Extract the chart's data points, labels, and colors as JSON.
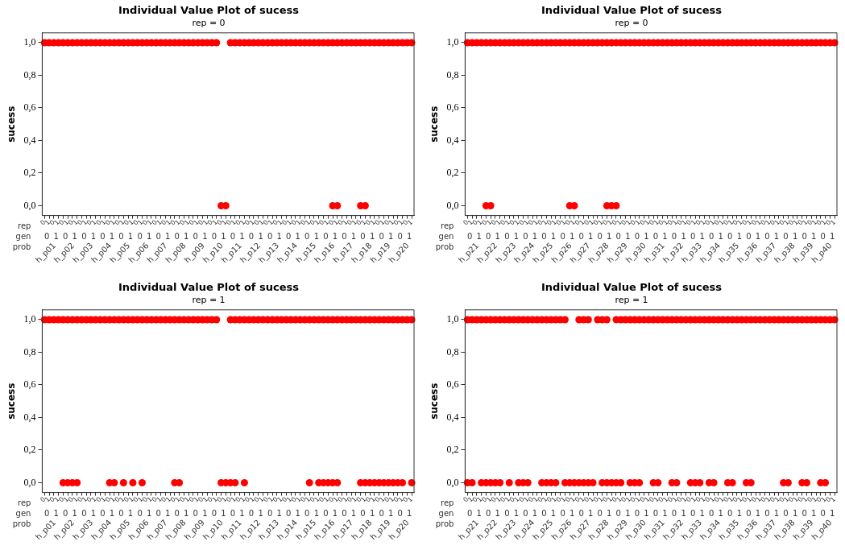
{
  "chart_data": [
    {
      "type": "scatter",
      "title": "Individual Value Plot of sucess",
      "subtitle": "rep = 0",
      "ylabel": "sucess",
      "marker": "circle",
      "grid": false,
      "legend": false,
      "categories": [
        "0",
        "1",
        "0",
        "1",
        "0",
        "1",
        "0",
        "1",
        "0",
        "1",
        "0",
        "1",
        "0",
        "1",
        "0",
        "1",
        "0",
        "1",
        "0",
        "1",
        "0",
        "1",
        "0",
        "1",
        "0",
        "1",
        "0",
        "1",
        "0",
        "1",
        "0",
        "1",
        "0",
        "1",
        "0",
        "1",
        "0",
        "1",
        "0",
        "1",
        "0",
        "1",
        "0",
        "1",
        "0",
        "1",
        "0",
        "1",
        "0",
        "1",
        "0",
        "1",
        "0",
        "1",
        "0",
        "1",
        "0",
        "1",
        "0",
        "1",
        "0",
        "1",
        "0",
        "1",
        "0",
        "1",
        "0",
        "1",
        "0",
        "1",
        "0",
        "1",
        "0",
        "1",
        "0",
        "1",
        "0",
        "1",
        "0",
        "1"
      ],
      "ylim": [
        -0.06,
        1.06
      ],
      "yticks": [
        {
          "value": 0,
          "label": "0,0"
        },
        {
          "value": 0.2,
          "label": "0,2"
        },
        {
          "value": 0.4,
          "label": "0,4"
        },
        {
          "value": 0.6,
          "label": "0,6"
        },
        {
          "value": 0.8,
          "label": "0,8"
        },
        {
          "value": 1,
          "label": "1,0"
        }
      ],
      "series": [
        {
          "type": "scatter",
          "color": "#ff0000",
          "values": [
            1,
            1,
            1,
            1,
            1,
            1,
            1,
            1,
            1,
            1,
            1,
            1,
            1,
            1,
            1,
            1,
            1,
            1,
            1,
            1,
            1,
            1,
            1,
            1,
            1,
            1,
            1,
            1,
            1,
            1,
            1,
            1,
            1,
            1,
            1,
            1,
            1,
            1,
            null,
            null,
            1,
            1,
            1,
            1,
            1,
            1,
            1,
            1,
            1,
            1,
            1,
            1,
            1,
            1,
            1,
            1,
            1,
            1,
            1,
            1,
            1,
            1,
            1,
            1,
            1,
            1,
            1,
            1,
            1,
            1,
            1,
            1,
            1,
            1,
            1,
            1,
            1,
            1,
            1,
            1
          ]
        },
        {
          "type": "scatter",
          "color": "#ff0000",
          "values": [
            null,
            null,
            null,
            null,
            null,
            null,
            null,
            null,
            null,
            null,
            null,
            null,
            null,
            null,
            null,
            null,
            null,
            null,
            null,
            null,
            null,
            null,
            null,
            null,
            null,
            null,
            null,
            null,
            null,
            null,
            null,
            null,
            null,
            null,
            null,
            null,
            null,
            null,
            0,
            0,
            null,
            null,
            null,
            null,
            null,
            null,
            null,
            null,
            null,
            null,
            null,
            null,
            null,
            null,
            null,
            null,
            null,
            null,
            null,
            null,
            null,
            null,
            0,
            0,
            null,
            null,
            null,
            null,
            0,
            0,
            null,
            null,
            null,
            null,
            null,
            null,
            null,
            null,
            null,
            null
          ]
        }
      ],
      "annotations": [
        "rep",
        "gen",
        "prob",
        "0",
        "1",
        "0",
        "1",
        "0",
        "1",
        "0",
        "1",
        "0",
        "1",
        "0",
        "1",
        "0",
        "1",
        "0",
        "1",
        "0",
        "1",
        "0",
        "1",
        "0",
        "1",
        "0",
        "1",
        "0",
        "1",
        "0",
        "1",
        "0",
        "1",
        "0",
        "1",
        "0",
        "1",
        "0",
        "1",
        "0",
        "1",
        "0",
        "1",
        "h_p01",
        "h_p02",
        "h_p03",
        "h_p04",
        "h_p05",
        "h_p06",
        "h_p07",
        "h_p08",
        "h_p09",
        "h_p10",
        "h_p11",
        "h_p12",
        "h_p13",
        "h_p14",
        "h_p15",
        "h_p16",
        "h_p17",
        "h_p18",
        "h_p19",
        "h_p20"
      ]
    },
    {
      "type": "scatter",
      "title": "Individual Value Plot of sucess",
      "subtitle": "rep = 0",
      "ylabel": "sucess",
      "marker": "circle",
      "grid": false,
      "legend": false,
      "categories": [
        "0",
        "1",
        "0",
        "1",
        "0",
        "1",
        "0",
        "1",
        "0",
        "1",
        "0",
        "1",
        "0",
        "1",
        "0",
        "1",
        "0",
        "1",
        "0",
        "1",
        "0",
        "1",
        "0",
        "1",
        "0",
        "1",
        "0",
        "1",
        "0",
        "1",
        "0",
        "1",
        "0",
        "1",
        "0",
        "1",
        "0",
        "1",
        "0",
        "1",
        "0",
        "1",
        "0",
        "1",
        "0",
        "1",
        "0",
        "1",
        "0",
        "1",
        "0",
        "1",
        "0",
        "1",
        "0",
        "1",
        "0",
        "1",
        "0",
        "1",
        "0",
        "1",
        "0",
        "1",
        "0",
        "1",
        "0",
        "1",
        "0",
        "1",
        "0",
        "1",
        "0",
        "1",
        "0",
        "1",
        "0",
        "1",
        "0",
        "1"
      ],
      "ylim": [
        -0.06,
        1.06
      ],
      "yticks": [
        {
          "value": 0,
          "label": "0,0"
        },
        {
          "value": 0.2,
          "label": "0,2"
        },
        {
          "value": 0.4,
          "label": "0,4"
        },
        {
          "value": 0.6,
          "label": "0,6"
        },
        {
          "value": 0.8,
          "label": "0,8"
        },
        {
          "value": 1,
          "label": "1,0"
        }
      ],
      "series": [
        {
          "type": "scatter",
          "color": "#ff0000",
          "values": [
            1,
            1,
            1,
            1,
            1,
            1,
            1,
            1,
            1,
            1,
            1,
            1,
            1,
            1,
            1,
            1,
            1,
            1,
            1,
            1,
            1,
            1,
            1,
            1,
            1,
            1,
            1,
            1,
            1,
            1,
            1,
            1,
            1,
            1,
            1,
            1,
            1,
            1,
            1,
            1,
            1,
            1,
            1,
            1,
            1,
            1,
            1,
            1,
            1,
            1,
            1,
            1,
            1,
            1,
            1,
            1,
            1,
            1,
            1,
            1,
            1,
            1,
            1,
            1,
            1,
            1,
            1,
            1,
            1,
            1,
            1,
            1,
            1,
            1,
            1,
            1,
            1,
            1,
            1,
            1
          ]
        },
        {
          "type": "scatter",
          "color": "#ff0000",
          "values": [
            null,
            null,
            null,
            null,
            0,
            0,
            null,
            null,
            null,
            null,
            null,
            null,
            null,
            null,
            null,
            null,
            null,
            null,
            null,
            null,
            null,
            null,
            0,
            0,
            null,
            null,
            null,
            null,
            null,
            null,
            0,
            0,
            0,
            null,
            null,
            null,
            null,
            null,
            null,
            null,
            null,
            null,
            null,
            null,
            null,
            null,
            null,
            null,
            null,
            null,
            null,
            null,
            null,
            null,
            null,
            null,
            null,
            null,
            null,
            null,
            null,
            null,
            null,
            null,
            null,
            null,
            null,
            null,
            null,
            null,
            null,
            null,
            null,
            null,
            null,
            null,
            null,
            null,
            null,
            null
          ]
        }
      ],
      "annotations": [
        "rep",
        "gen",
        "prob",
        "0",
        "1",
        "0",
        "1",
        "0",
        "1",
        "0",
        "1",
        "0",
        "1",
        "0",
        "1",
        "0",
        "1",
        "0",
        "1",
        "0",
        "1",
        "0",
        "1",
        "0",
        "1",
        "0",
        "1",
        "0",
        "1",
        "0",
        "1",
        "0",
        "1",
        "0",
        "1",
        "0",
        "1",
        "0",
        "1",
        "0",
        "1",
        "0",
        "1",
        "h_p21",
        "h_p22",
        "h_p23",
        "h_p24",
        "h_p25",
        "h_p26",
        "h_p27",
        "h_p28",
        "h_p29",
        "h_p30",
        "h_p31",
        "h_p32",
        "h_p33",
        "h_p34",
        "h_p35",
        "h_p36",
        "h_p37",
        "h_p38",
        "h_p39",
        "h_p40"
      ]
    },
    {
      "type": "scatter",
      "title": "Individual Value Plot of sucess",
      "subtitle": "rep = 1",
      "ylabel": "sucess",
      "marker": "circle",
      "grid": false,
      "legend": false,
      "categories": [
        "0",
        "1",
        "0",
        "1",
        "0",
        "1",
        "0",
        "1",
        "0",
        "1",
        "0",
        "1",
        "0",
        "1",
        "0",
        "1",
        "0",
        "1",
        "0",
        "1",
        "0",
        "1",
        "0",
        "1",
        "0",
        "1",
        "0",
        "1",
        "0",
        "1",
        "0",
        "1",
        "0",
        "1",
        "0",
        "1",
        "0",
        "1",
        "0",
        "1",
        "0",
        "1",
        "0",
        "1",
        "0",
        "1",
        "0",
        "1",
        "0",
        "1",
        "0",
        "1",
        "0",
        "1",
        "0",
        "1",
        "0",
        "1",
        "0",
        "1",
        "0",
        "1",
        "0",
        "1",
        "0",
        "1",
        "0",
        "1",
        "0",
        "1",
        "0",
        "1",
        "0",
        "1",
        "0",
        "1",
        "0",
        "1",
        "0",
        "1"
      ],
      "ylim": [
        -0.06,
        1.06
      ],
      "yticks": [
        {
          "value": 0,
          "label": "0,0"
        },
        {
          "value": 0.2,
          "label": "0,2"
        },
        {
          "value": 0.4,
          "label": "0,4"
        },
        {
          "value": 0.6,
          "label": "0,6"
        },
        {
          "value": 0.8,
          "label": "0,8"
        },
        {
          "value": 1,
          "label": "1,0"
        }
      ],
      "series": [
        {
          "type": "scatter",
          "color": "#ff0000",
          "values": [
            1,
            1,
            1,
            1,
            1,
            1,
            1,
            1,
            1,
            1,
            1,
            1,
            1,
            1,
            1,
            1,
            1,
            1,
            1,
            1,
            1,
            1,
            1,
            1,
            1,
            1,
            1,
            1,
            1,
            1,
            1,
            1,
            1,
            1,
            1,
            1,
            1,
            1,
            null,
            null,
            1,
            1,
            1,
            1,
            1,
            1,
            1,
            1,
            1,
            1,
            1,
            1,
            1,
            1,
            1,
            1,
            1,
            1,
            1,
            1,
            1,
            1,
            1,
            1,
            1,
            1,
            1,
            1,
            1,
            1,
            1,
            1,
            1,
            1,
            1,
            1,
            1,
            1,
            1,
            1
          ]
        },
        {
          "type": "scatter",
          "color": "#ff0000",
          "values": [
            null,
            null,
            null,
            null,
            0,
            0,
            0,
            0,
            null,
            null,
            null,
            null,
            null,
            null,
            0,
            0,
            null,
            0,
            null,
            0,
            null,
            0,
            null,
            null,
            null,
            null,
            null,
            null,
            0,
            0,
            null,
            null,
            null,
            null,
            null,
            null,
            null,
            null,
            0,
            0,
            0,
            0,
            null,
            0,
            null,
            null,
            null,
            null,
            null,
            null,
            null,
            null,
            null,
            null,
            null,
            null,
            null,
            0,
            null,
            0,
            0,
            0,
            0,
            0,
            null,
            null,
            null,
            null,
            0,
            0,
            0,
            0,
            0,
            0,
            0,
            0,
            0,
            0,
            null,
            0
          ]
        }
      ],
      "annotations": [
        "rep",
        "gen",
        "prob",
        "0",
        "1",
        "0",
        "1",
        "0",
        "1",
        "0",
        "1",
        "0",
        "1",
        "0",
        "1",
        "0",
        "1",
        "0",
        "1",
        "0",
        "1",
        "0",
        "1",
        "0",
        "1",
        "0",
        "1",
        "0",
        "1",
        "0",
        "1",
        "0",
        "1",
        "0",
        "1",
        "0",
        "1",
        "0",
        "1",
        "0",
        "1",
        "0",
        "1",
        "h_p01",
        "h_p02",
        "h_p03",
        "h_p04",
        "h_p05",
        "h_p06",
        "h_p07",
        "h_p08",
        "h_p09",
        "h_p10",
        "h_p11",
        "h_p12",
        "h_p13",
        "h_p14",
        "h_p15",
        "h_p16",
        "h_p17",
        "h_p18",
        "h_p19",
        "h_p20"
      ]
    },
    {
      "type": "scatter",
      "title": "Individual Value Plot of sucess",
      "subtitle": "rep = 1",
      "ylabel": "sucess",
      "marker": "circle",
      "grid": false,
      "legend": false,
      "categories": [
        "0",
        "1",
        "0",
        "1",
        "0",
        "1",
        "0",
        "1",
        "0",
        "1",
        "0",
        "1",
        "0",
        "1",
        "0",
        "1",
        "0",
        "1",
        "0",
        "1",
        "0",
        "1",
        "0",
        "1",
        "0",
        "1",
        "0",
        "1",
        "0",
        "1",
        "0",
        "1",
        "0",
        "1",
        "0",
        "1",
        "0",
        "1",
        "0",
        "1",
        "0",
        "1",
        "0",
        "1",
        "0",
        "1",
        "0",
        "1",
        "0",
        "1",
        "0",
        "1",
        "0",
        "1",
        "0",
        "1",
        "0",
        "1",
        "0",
        "1",
        "0",
        "1",
        "0",
        "1",
        "0",
        "1",
        "0",
        "1",
        "0",
        "1",
        "0",
        "1",
        "0",
        "1",
        "0",
        "1",
        "0",
        "1",
        "0",
        "1"
      ],
      "ylim": [
        -0.06,
        1.06
      ],
      "yticks": [
        {
          "value": 0,
          "label": "0,0"
        },
        {
          "value": 0.2,
          "label": "0,2"
        },
        {
          "value": 0.4,
          "label": "0,4"
        },
        {
          "value": 0.6,
          "label": "0,6"
        },
        {
          "value": 0.8,
          "label": "0,8"
        },
        {
          "value": 1,
          "label": "1,0"
        }
      ],
      "series": [
        {
          "type": "scatter",
          "color": "#ff0000",
          "values": [
            1,
            1,
            1,
            1,
            1,
            1,
            1,
            1,
            1,
            1,
            1,
            1,
            1,
            1,
            1,
            1,
            1,
            1,
            1,
            1,
            1,
            1,
            null,
            null,
            1,
            1,
            1,
            null,
            1,
            1,
            1,
            null,
            1,
            1,
            1,
            1,
            1,
            1,
            1,
            1,
            1,
            1,
            1,
            1,
            1,
            1,
            1,
            1,
            1,
            1,
            1,
            1,
            1,
            1,
            1,
            1,
            1,
            1,
            1,
            1,
            1,
            1,
            1,
            1,
            1,
            1,
            1,
            1,
            1,
            1,
            1,
            1,
            1,
            1,
            1,
            1,
            1,
            1,
            1,
            1
          ]
        },
        {
          "type": "scatter",
          "color": "#ff0000",
          "values": [
            0,
            0,
            null,
            0,
            0,
            0,
            0,
            0,
            null,
            0,
            null,
            0,
            0,
            0,
            null,
            null,
            0,
            0,
            0,
            0,
            null,
            0,
            0,
            0,
            0,
            0,
            0,
            0,
            null,
            0,
            0,
            0,
            0,
            0,
            null,
            0,
            0,
            0,
            null,
            null,
            0,
            0,
            null,
            null,
            0,
            0,
            null,
            null,
            0,
            0,
            0,
            null,
            0,
            0,
            null,
            null,
            0,
            0,
            null,
            null,
            0,
            0,
            null,
            null,
            null,
            null,
            null,
            null,
            0,
            0,
            null,
            null,
            0,
            0,
            null,
            null,
            0,
            0,
            null,
            null
          ]
        }
      ],
      "annotations": [
        "rep",
        "gen",
        "prob",
        "0",
        "1",
        "0",
        "1",
        "0",
        "1",
        "0",
        "1",
        "0",
        "1",
        "0",
        "1",
        "0",
        "1",
        "0",
        "1",
        "0",
        "1",
        "0",
        "1",
        "0",
        "1",
        "0",
        "1",
        "0",
        "1",
        "0",
        "1",
        "0",
        "1",
        "0",
        "1",
        "0",
        "1",
        "0",
        "1",
        "0",
        "1",
        "0",
        "1",
        "h_p21",
        "h_p22",
        "h_p23",
        "h_p24",
        "h_p25",
        "h_p26",
        "h_p27",
        "h_p28",
        "h_p29",
        "h_p30",
        "h_p31",
        "h_p32",
        "h_p33",
        "h_p34",
        "h_p35",
        "h_p36",
        "h_p37",
        "h_p38",
        "h_p39",
        "h_p40"
      ]
    }
  ]
}
